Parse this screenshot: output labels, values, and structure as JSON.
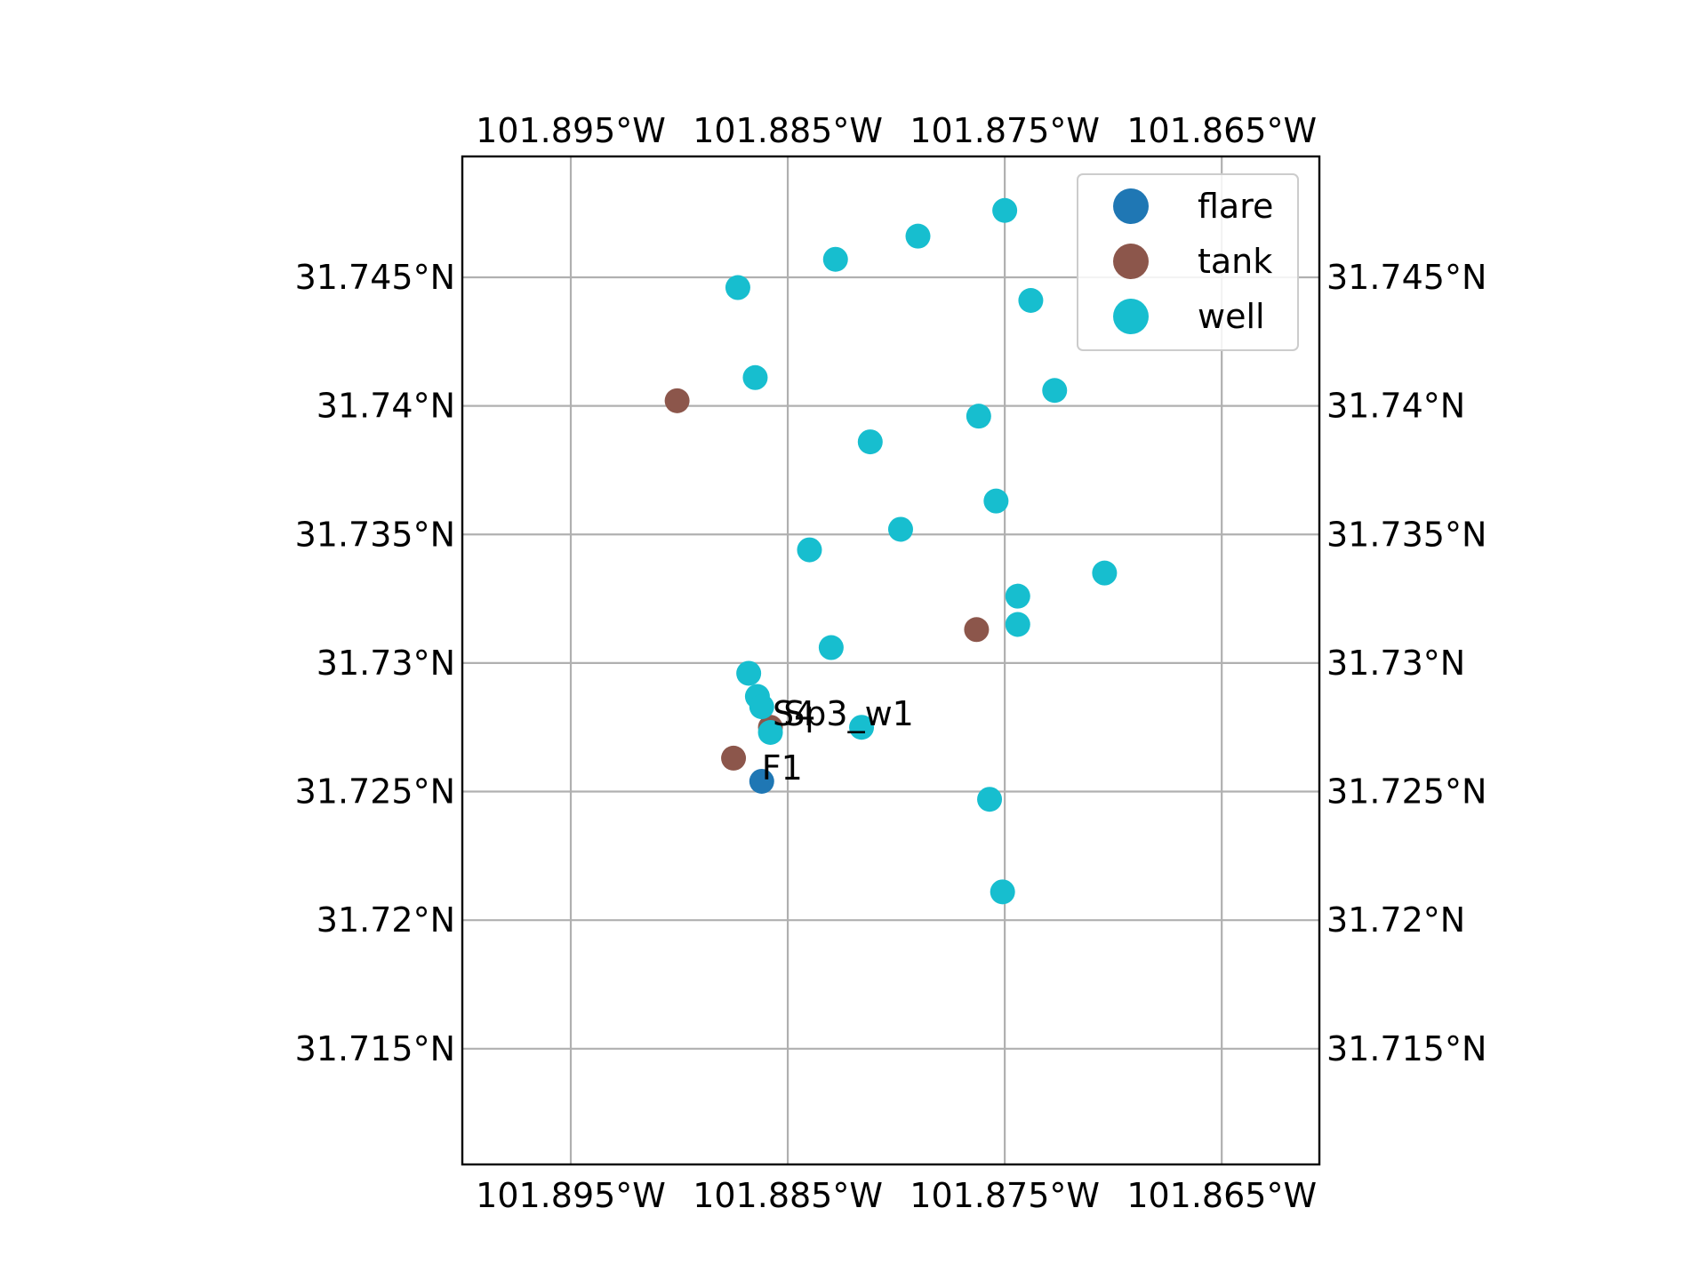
{
  "chart_data": {
    "type": "scatter",
    "title": "",
    "xlabel": "",
    "ylabel": "",
    "xlim": [
      -101.9,
      -101.8605
    ],
    "ylim": [
      31.7105,
      31.7497
    ],
    "grid": true,
    "legend_position": "top-right",
    "x_ticks": [
      -101.895,
      -101.885,
      -101.875,
      -101.865
    ],
    "x_tick_labels": [
      "101.895°W",
      "101.885°W",
      "101.875°W",
      "101.865°W"
    ],
    "y_ticks": [
      31.745,
      31.74,
      31.735,
      31.73,
      31.725,
      31.72,
      31.715
    ],
    "y_tick_labels": [
      "31.745°N",
      "31.74°N",
      "31.735°N",
      "31.73°N",
      "31.725°N",
      "31.72°N",
      "31.715°N"
    ],
    "series": [
      {
        "name": "flare",
        "color": "#1f77b4",
        "points": [
          {
            "x": -101.8862,
            "y": 31.7254
          }
        ]
      },
      {
        "name": "tank",
        "color": "#8c564b",
        "points": [
          {
            "x": -101.8901,
            "y": 31.7402
          },
          {
            "x": -101.8875,
            "y": 31.7263
          },
          {
            "x": -101.8858,
            "y": 31.7275
          },
          {
            "x": -101.8763,
            "y": 31.7313
          }
        ]
      },
      {
        "name": "well",
        "color": "#17becf",
        "points": [
          {
            "x": -101.875,
            "y": 31.7476
          },
          {
            "x": -101.879,
            "y": 31.7466
          },
          {
            "x": -101.8828,
            "y": 31.7457
          },
          {
            "x": -101.8873,
            "y": 31.7446
          },
          {
            "x": -101.8738,
            "y": 31.7441
          },
          {
            "x": -101.8865,
            "y": 31.7411
          },
          {
            "x": -101.8727,
            "y": 31.7406
          },
          {
            "x": -101.8762,
            "y": 31.7396
          },
          {
            "x": -101.8812,
            "y": 31.7386
          },
          {
            "x": -101.8754,
            "y": 31.7363
          },
          {
            "x": -101.8798,
            "y": 31.7352
          },
          {
            "x": -101.884,
            "y": 31.7344
          },
          {
            "x": -101.8704,
            "y": 31.7335
          },
          {
            "x": -101.8744,
            "y": 31.7326
          },
          {
            "x": -101.8744,
            "y": 31.7315
          },
          {
            "x": -101.883,
            "y": 31.7306
          },
          {
            "x": -101.8868,
            "y": 31.7296
          },
          {
            "x": -101.8864,
            "y": 31.7287
          },
          {
            "x": -101.8862,
            "y": 31.7283
          },
          {
            "x": -101.8858,
            "y": 31.7273
          },
          {
            "x": -101.8816,
            "y": 31.7275
          },
          {
            "x": -101.8757,
            "y": 31.7247
          },
          {
            "x": -101.8751,
            "y": 31.7211
          }
        ]
      }
    ],
    "annotations": [
      {
        "text": "S4",
        "x": -101.8857,
        "y": 31.7275
      },
      {
        "text": "Sp3_w1",
        "x": -101.8852,
        "y": 31.7275
      },
      {
        "text": "F1",
        "x": -101.8862,
        "y": 31.7254
      }
    ]
  }
}
